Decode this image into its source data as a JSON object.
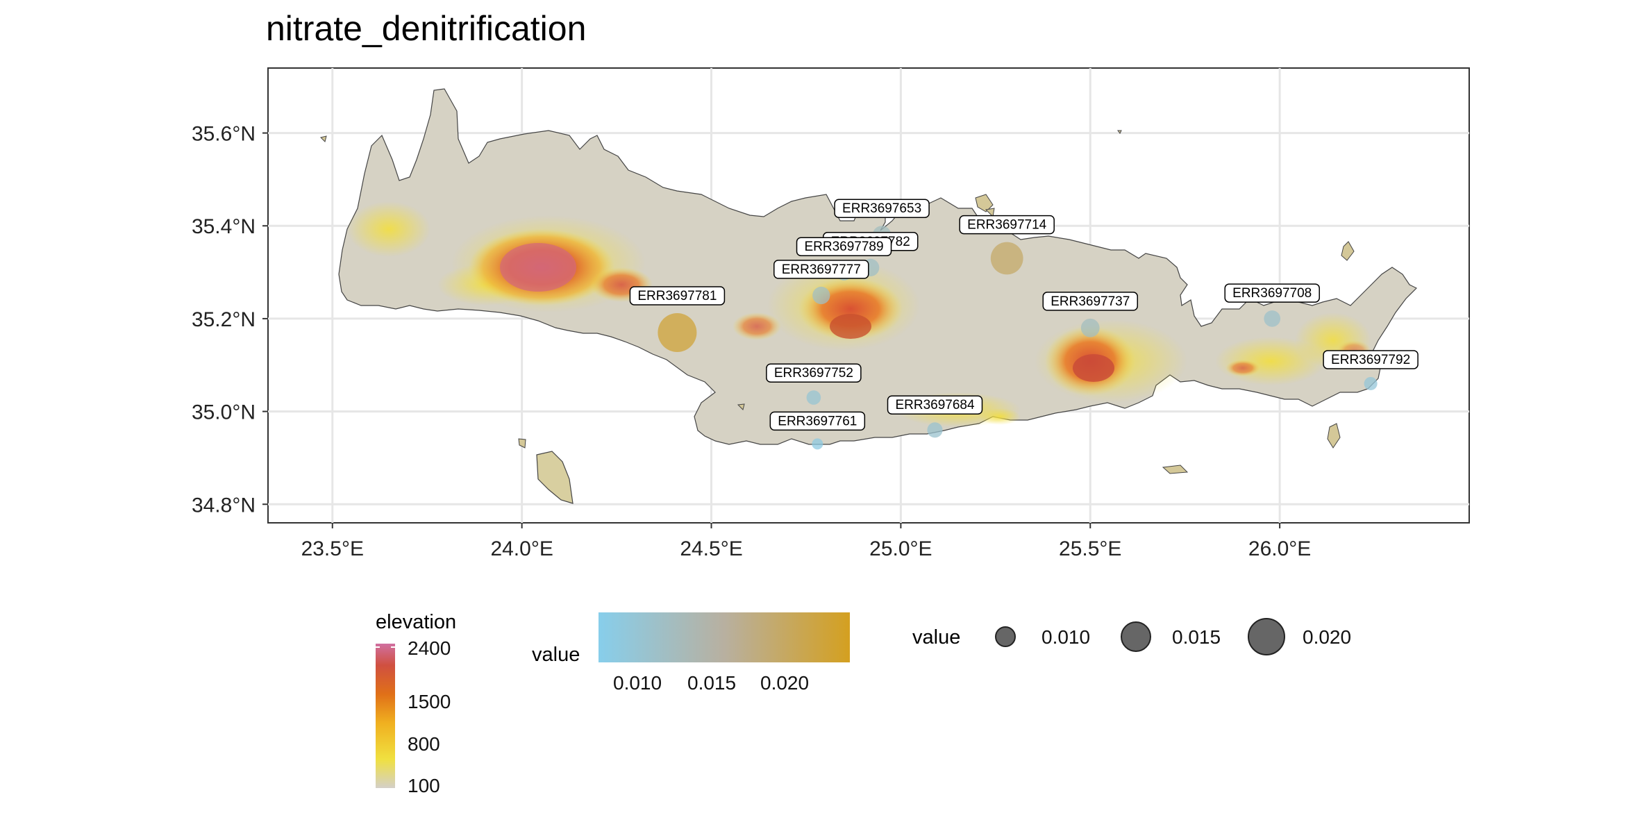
{
  "title": "nitrate_denitrification",
  "axes": {
    "x_ticks": [
      {
        "value": 23.5,
        "label": "23.5°E"
      },
      {
        "value": 24.0,
        "label": "24.0°E"
      },
      {
        "value": 24.5,
        "label": "24.5°E"
      },
      {
        "value": 25.0,
        "label": "25.0°E"
      },
      {
        "value": 25.5,
        "label": "25.5°E"
      },
      {
        "value": 26.0,
        "label": "26.0°E"
      }
    ],
    "y_ticks": [
      {
        "value": 35.6,
        "label": "35.6°N"
      },
      {
        "value": 35.4,
        "label": "35.4°N"
      },
      {
        "value": 35.2,
        "label": "35.2°N"
      },
      {
        "value": 35.0,
        "label": "35.0°N"
      },
      {
        "value": 34.8,
        "label": "34.8°N"
      }
    ],
    "xlim": [
      23.33,
      26.5
    ],
    "ylim": [
      34.76,
      35.74
    ],
    "grid": true
  },
  "legends": {
    "elevation": {
      "title": "elevation",
      "labels": [
        "2400",
        "1500",
        "800",
        "100"
      ],
      "colors": [
        "#d4d0c8",
        "#f0e040",
        "#f0b020",
        "#e07018",
        "#d05040",
        "#d070a0"
      ]
    },
    "value_color": {
      "title": "value",
      "labels": [
        "0.010",
        "0.015",
        "0.020"
      ],
      "low_color": "#87ceeb",
      "mid_color": "#b8b0a0",
      "high_color": "#d4a020"
    },
    "value_size": {
      "title": "value",
      "labels": [
        "0.010",
        "0.015",
        "0.020"
      ],
      "fill": "#555555"
    }
  },
  "samples": [
    {
      "id": "ERR3697653",
      "lon": 24.95,
      "lat": 35.38,
      "value": 0.0125
    },
    {
      "id": "ERR3697714",
      "lon": 25.28,
      "lat": 35.33,
      "value": 0.019
    },
    {
      "id": "ERR3697782",
      "lon": 24.92,
      "lat": 35.31,
      "value": 0.012
    },
    {
      "id": "ERR3697789",
      "lon": 24.85,
      "lat": 35.3,
      "value": 0.0115
    },
    {
      "id": "ERR3697777",
      "lon": 24.79,
      "lat": 35.25,
      "value": 0.012
    },
    {
      "id": "ERR3697781",
      "lon": 24.41,
      "lat": 35.17,
      "value": 0.022
    },
    {
      "id": "ERR3697737",
      "lon": 25.5,
      "lat": 35.18,
      "value": 0.0125
    },
    {
      "id": "ERR3697708",
      "lon": 25.98,
      "lat": 35.2,
      "value": 0.0115
    },
    {
      "id": "ERR3697792",
      "lon": 26.24,
      "lat": 35.06,
      "value": 0.01
    },
    {
      "id": "ERR3697752",
      "lon": 24.77,
      "lat": 35.03,
      "value": 0.0105
    },
    {
      "id": "ERR3697684",
      "lon": 25.09,
      "lat": 34.96,
      "value": 0.011
    },
    {
      "id": "ERR3697761",
      "lon": 24.78,
      "lat": 34.93,
      "value": 0.009
    }
  ],
  "map_colors": {
    "land_low": "#d4d0c8",
    "land_mid": "#f0dc48",
    "land_high": "#e07020",
    "land_peak": "#d05a70",
    "sea": "#ebebeb",
    "grid": "#ffffff"
  }
}
